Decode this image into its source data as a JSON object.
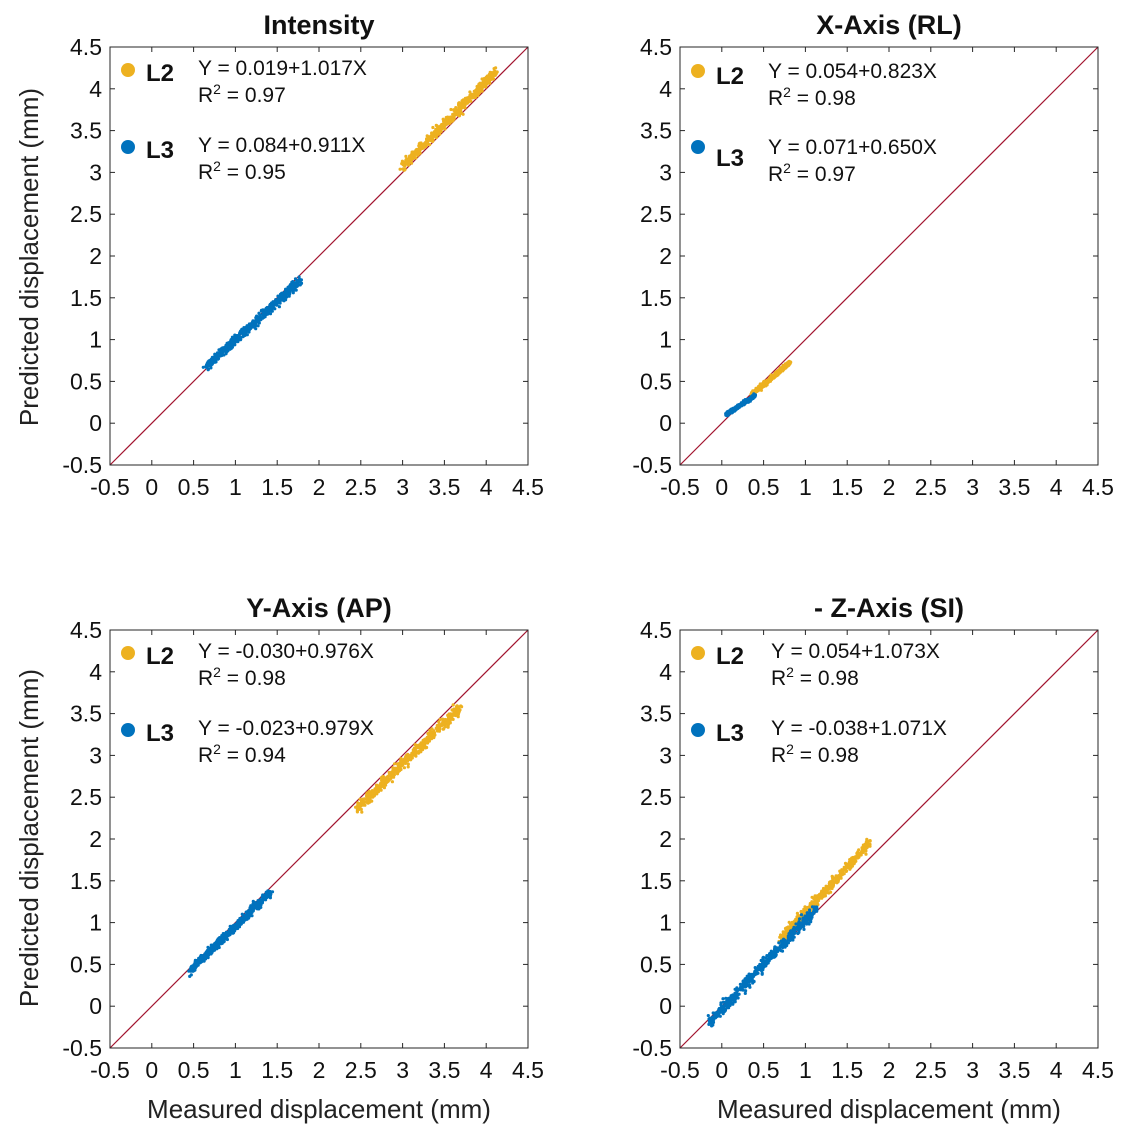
{
  "figure": {
    "xlabel": "Measured displacement (mm)",
    "ylabel": "Predicted displacement (mm)",
    "colors": {
      "L2": "#EDB120",
      "L3": "#0072BD",
      "identity_line": "#A2142F",
      "axes": "#262626"
    }
  },
  "chart_data": [
    {
      "type": "scatter",
      "title": "Intensity",
      "xlim": [
        -0.5,
        4.5
      ],
      "ylim": [
        -0.5,
        4.5
      ],
      "xticks": [
        "-0.5",
        "0",
        "0.5",
        "1",
        "1.5",
        "2",
        "2.5",
        "3",
        "3.5",
        "4",
        "4.5"
      ],
      "yticks": [
        "-0.5",
        "0",
        "0.5",
        "1",
        "1.5",
        "2",
        "2.5",
        "3",
        "3.5",
        "4",
        "4.5"
      ],
      "reference_line": "y = x",
      "series": [
        {
          "name": "L2",
          "equation": "Y = 0.019+1.017X",
          "r2_prefix": "R",
          "r2_sup": "2",
          "r2_suffix": " = 0.97",
          "x_range": [
            3.0,
            4.12
          ],
          "intercept": 0.019,
          "slope": 1.017
        },
        {
          "name": "L3",
          "equation": "Y = 0.084+0.911X",
          "r2_prefix": "R",
          "r2_sup": "2",
          "r2_suffix": " = 0.95",
          "x_range": [
            0.65,
            1.78
          ],
          "intercept": 0.084,
          "slope": 0.911
        }
      ]
    },
    {
      "type": "scatter",
      "title": "X-Axis (RL)",
      "xlim": [
        -0.5,
        4.5
      ],
      "ylim": [
        -0.5,
        4.5
      ],
      "xticks": [
        "-0.5",
        "0",
        "0.5",
        "1",
        "1.5",
        "2",
        "2.5",
        "3",
        "3.5",
        "4",
        "4.5"
      ],
      "yticks": [
        "-0.5",
        "0",
        "0.5",
        "1",
        "1.5",
        "2",
        "2.5",
        "3",
        "3.5",
        "4",
        "4.5"
      ],
      "reference_line": "y = x",
      "series": [
        {
          "name": "L2",
          "equation": "Y = 0.054+0.823X",
          "r2_prefix": "R",
          "r2_sup": "2",
          "r2_suffix": " = 0.98",
          "x_range": [
            0.35,
            0.82
          ],
          "intercept": 0.054,
          "slope": 0.823
        },
        {
          "name": "L3",
          "equation": "Y = 0.071+0.650X",
          "r2_prefix": "R",
          "r2_sup": "2",
          "r2_suffix": " = 0.97",
          "x_range": [
            0.05,
            0.4
          ],
          "intercept": 0.071,
          "slope": 0.65
        }
      ]
    },
    {
      "type": "scatter",
      "title": "Y-Axis (AP)",
      "xlim": [
        -0.5,
        4.5
      ],
      "ylim": [
        -0.5,
        4.5
      ],
      "xticks": [
        "-0.5",
        "0",
        "0.5",
        "1",
        "1.5",
        "2",
        "2.5",
        "3",
        "3.5",
        "4",
        "4.5"
      ],
      "yticks": [
        "-0.5",
        "0",
        "0.5",
        "1",
        "1.5",
        "2",
        "2.5",
        "3",
        "3.5",
        "4",
        "4.5"
      ],
      "reference_line": "y = x",
      "series": [
        {
          "name": "L2",
          "equation": "Y = -0.030+0.976X",
          "r2_prefix": "R",
          "r2_sup": "2",
          "r2_suffix": "  = 0.98",
          "x_range": [
            2.45,
            3.7
          ],
          "intercept": -0.03,
          "slope": 0.976
        },
        {
          "name": "L3",
          "equation": "Y = -0.023+0.979X",
          "r2_prefix": "R",
          "r2_sup": "2",
          "r2_suffix": "  = 0.94",
          "x_range": [
            0.45,
            1.42
          ],
          "intercept": -0.023,
          "slope": 0.979
        }
      ]
    },
    {
      "type": "scatter",
      "title": "- Z-Axis (SI)",
      "xlim": [
        -0.5,
        4.5
      ],
      "ylim": [
        -0.5,
        4.5
      ],
      "xticks": [
        "-0.5",
        "0",
        "0.5",
        "1",
        "1.5",
        "2",
        "2.5",
        "3",
        "3.5",
        "4",
        "4.5"
      ],
      "yticks": [
        "-0.5",
        "0",
        "0.5",
        "1",
        "1.5",
        "2",
        "2.5",
        "3",
        "3.5",
        "4",
        "4.5"
      ],
      "reference_line": "y = x",
      "series": [
        {
          "name": "L2",
          "equation": "Y = 0.054+1.073X",
          "r2_prefix": "R",
          "r2_sup": "2",
          "r2_suffix": " = 0.98",
          "x_range": [
            0.7,
            1.78
          ],
          "intercept": 0.054,
          "slope": 1.073
        },
        {
          "name": "L3",
          "equation": "Y = -0.038+1.071X",
          "r2_prefix": "R",
          "r2_sup": "2",
          "r2_suffix": " = 0.98",
          "x_range": [
            -0.15,
            1.15
          ],
          "intercept": -0.038,
          "slope": 1.071
        }
      ]
    }
  ]
}
